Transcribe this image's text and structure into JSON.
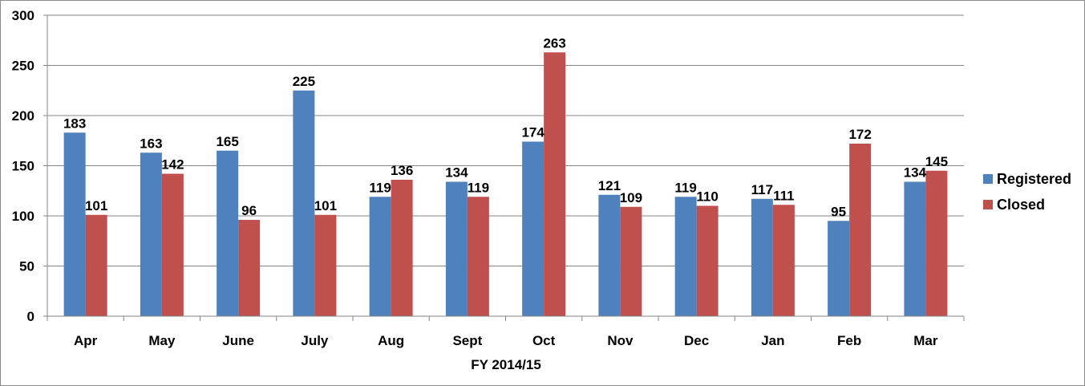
{
  "chart_data": {
    "type": "bar",
    "title": "",
    "xlabel": "FY 2014/15",
    "ylabel": "",
    "ylim": [
      0,
      300
    ],
    "yticks": [
      0,
      50,
      100,
      150,
      200,
      250,
      300
    ],
    "grid": true,
    "legend_position": "right",
    "categories": [
      "Apr",
      "May",
      "June",
      "July",
      "Aug",
      "Sept",
      "Oct",
      "Nov",
      "Dec",
      "Jan",
      "Feb",
      "Mar"
    ],
    "series": [
      {
        "name": "Registered",
        "color": "#4F81BD",
        "values": [
          183,
          163,
          165,
          225,
          119,
          134,
          174,
          121,
          119,
          117,
          95,
          134
        ]
      },
      {
        "name": "Closed",
        "color": "#C0504D",
        "values": [
          101,
          142,
          96,
          101,
          136,
          119,
          263,
          109,
          110,
          111,
          172,
          145
        ]
      }
    ]
  }
}
